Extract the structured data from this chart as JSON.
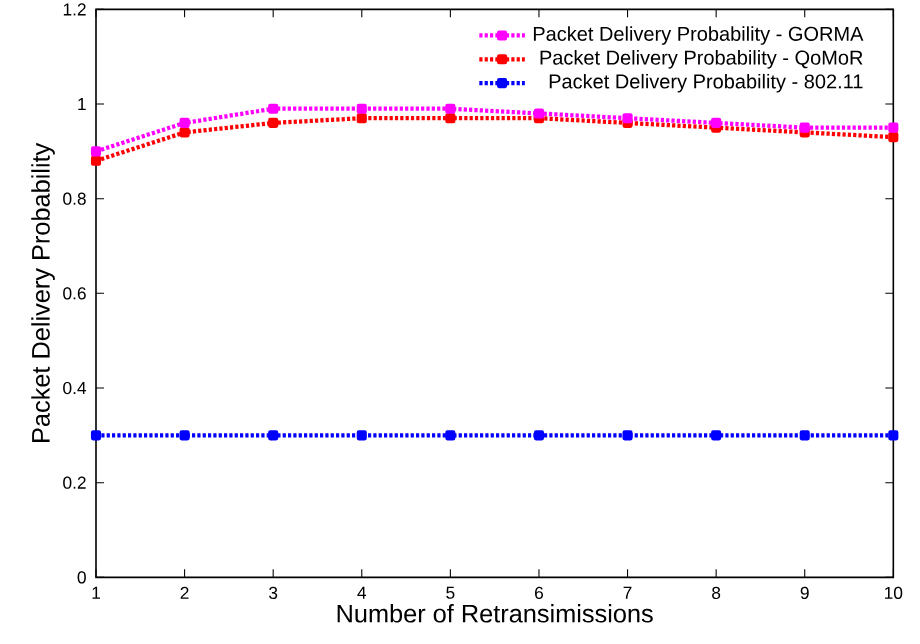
{
  "chart_data": {
    "type": "line",
    "xlabel": "Number of Retransimissions",
    "ylabel": "Packet Delivery Probability",
    "x": [
      1,
      2,
      3,
      4,
      5,
      6,
      7,
      8,
      9,
      10
    ],
    "series": [
      {
        "name": "Packet Delivery Probability - GORMA",
        "color": "#ff00ff",
        "values": [
          0.9,
          0.96,
          0.99,
          0.99,
          0.99,
          0.98,
          0.97,
          0.96,
          0.95,
          0.95
        ]
      },
      {
        "name": "Packet Delivery Probability - QoMoR",
        "color": "#ff0000",
        "values": [
          0.88,
          0.94,
          0.96,
          0.97,
          0.97,
          0.97,
          0.96,
          0.95,
          0.94,
          0.93
        ]
      },
      {
        "name": "Packet Delivery Probability - 802.11",
        "color": "#0000ff",
        "values": [
          0.3,
          0.3,
          0.3,
          0.3,
          0.3,
          0.3,
          0.3,
          0.3,
          0.3,
          0.3
        ]
      }
    ],
    "xlim": [
      1,
      10
    ],
    "ylim": [
      0,
      1.2
    ],
    "xticks": [
      1,
      2,
      3,
      4,
      5,
      6,
      7,
      8,
      9,
      10
    ],
    "yticks": [
      0,
      0.2,
      0.4,
      0.6,
      0.8,
      1,
      1.2
    ],
    "grid": false,
    "legend": "top right",
    "marker": "square",
    "line_style": "dotted"
  }
}
